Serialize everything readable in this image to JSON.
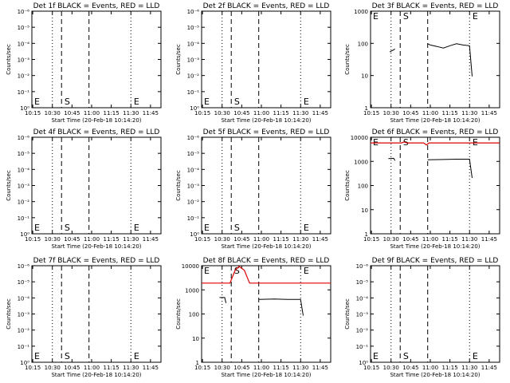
{
  "x_tick_labels": [
    "10:15",
    "10:30",
    "10:45",
    "11:00",
    "11:15",
    "11:30",
    "11:45"
  ],
  "xlabel": "Start Time (20-Feb-18 10:14:20)",
  "ylabel": "Counts/sec",
  "colors": {
    "events": "#000000",
    "lld": "#dd0000",
    "background": "#ffffff"
  },
  "chart_data": [
    {
      "type": "line",
      "title": "Det 1f BLACK = Events, RED = LLD",
      "yscale": "log",
      "xlim": [
        "10:14:20",
        "11:53"
      ],
      "ytick_labels": [
        "10⁰",
        "10⁻¹",
        "10⁻²",
        "10⁻³",
        "10⁻⁴",
        "10⁻⁵",
        "10⁻⁶"
      ],
      "ylim": [
        1,
        1e-06
      ],
      "annotations": [
        "E",
        "S",
        "E"
      ],
      "series": []
    },
    {
      "type": "line",
      "title": "Det 2f BLACK = Events, RED = LLD",
      "yscale": "log",
      "xlim": [
        "10:14:20",
        "11:53"
      ],
      "ytick_labels": [
        "10⁰",
        "10⁻¹",
        "10⁻²",
        "10⁻³",
        "10⁻⁴",
        "10⁻⁵",
        "10⁻⁶"
      ],
      "ylim": [
        1,
        1e-06
      ],
      "annotations": [
        "E",
        "S",
        "E"
      ],
      "series": []
    },
    {
      "type": "line",
      "title": "Det 3f BLACK = Events, RED = LLD",
      "yscale": "log",
      "xlim": [
        "10:14:20",
        "11:53"
      ],
      "ytick_labels": [
        "1",
        "10",
        "100",
        "1000"
      ],
      "ylim": [
        1,
        1200
      ],
      "annotations": [
        "E",
        "S",
        "E"
      ],
      "series": [
        {
          "color": "black",
          "segments": [
            [
              [
                "10:29",
                60
              ],
              [
                "10:32",
                70
              ],
              [
                "10:33",
                75
              ]
            ],
            [
              [
                "10:58",
                110
              ],
              [
                "11:00",
                100
              ],
              [
                "11:05",
                90
              ],
              [
                "11:10",
                80
              ],
              [
                "11:15",
                95
              ],
              [
                "11:20",
                110
              ],
              [
                "11:25",
                100
              ],
              [
                "11:30",
                95
              ],
              [
                "11:32",
                10
              ]
            ]
          ]
        }
      ]
    },
    {
      "type": "line",
      "title": "Det 4f BLACK = Events, RED = LLD",
      "yscale": "log",
      "xlim": [
        "10:14:20",
        "11:53"
      ],
      "ytick_labels": [
        "10⁰",
        "10⁻¹",
        "10⁻²",
        "10⁻³",
        "10⁻⁴",
        "10⁻⁵",
        "10⁻⁶"
      ],
      "ylim": [
        1,
        1e-06
      ],
      "annotations": [
        "E",
        "S",
        "E"
      ],
      "series": []
    },
    {
      "type": "line",
      "title": "Det 5f BLACK = Events, RED = LLD",
      "yscale": "log",
      "xlim": [
        "10:14:20",
        "11:53"
      ],
      "ytick_labels": [
        "10⁰",
        "10⁻¹",
        "10⁻²",
        "10⁻³",
        "10⁻⁴",
        "10⁻⁵",
        "10⁻⁶"
      ],
      "ylim": [
        1,
        1e-06
      ],
      "annotations": [
        "E",
        "S",
        "E"
      ],
      "series": []
    },
    {
      "type": "line",
      "title": "Det 6f BLACK = Events, RED = LLD",
      "yscale": "log",
      "xlim": [
        "10:14:20",
        "11:53"
      ],
      "ytick_labels": [
        "1",
        "10",
        "100",
        "1000",
        "10000"
      ],
      "ylim": [
        1,
        14000
      ],
      "annotations": [
        "E",
        "S",
        "E"
      ],
      "series": [
        {
          "color": "black",
          "segments": [
            [
              [
                "10:28",
                1700
              ],
              [
                "10:32",
                1750
              ],
              [
                "10:33",
                1400
              ]
            ],
            [
              [
                "10:58",
                1500
              ],
              [
                "11:10",
                1550
              ],
              [
                "11:20",
                1600
              ],
              [
                "11:30",
                1600
              ],
              [
                "11:32",
                250
              ]
            ]
          ]
        },
        {
          "color": "red",
          "segments": [
            [
              [
                "10:14:20",
                8000
              ],
              [
                "10:38",
                8000
              ],
              [
                "10:40",
                8800
              ],
              [
                "10:42",
                8000
              ],
              [
                "10:55",
                8000
              ],
              [
                "10:57",
                6500
              ],
              [
                "10:59",
                8000
              ],
              [
                "11:53",
                8000
              ]
            ]
          ]
        }
      ]
    },
    {
      "type": "line",
      "title": "Det 7f BLACK = Events, RED = LLD",
      "yscale": "log",
      "xlim": [
        "10:14:20",
        "11:53"
      ],
      "ytick_labels": [
        "10⁰",
        "10⁻¹",
        "10⁻²",
        "10⁻³",
        "10⁻⁴",
        "10⁻⁵",
        "10⁻⁶"
      ],
      "ylim": [
        1,
        1e-06
      ],
      "annotations": [
        "E",
        "S",
        "E"
      ],
      "series": []
    },
    {
      "type": "line",
      "title": "Det 8f BLACK = Events, RED = LLD",
      "yscale": "log",
      "xlim": [
        "10:14:20",
        "11:53"
      ],
      "ytick_labels": [
        "1",
        "10",
        "100",
        "1000",
        "10000"
      ],
      "ylim": [
        1,
        14000
      ],
      "annotations": [
        "E",
        "S",
        "E"
      ],
      "series": [
        {
          "color": "black",
          "segments": [
            [
              [
                "10:28",
                600
              ],
              [
                "10:32",
                600
              ],
              [
                "10:33",
                350
              ]
            ],
            [
              [
                "10:58",
                500
              ],
              [
                "11:10",
                520
              ],
              [
                "11:20",
                500
              ],
              [
                "11:30",
                500
              ],
              [
                "11:32",
                100
              ]
            ]
          ]
        },
        {
          "color": "red",
          "segments": [
            [
              [
                "10:14:20",
                2500
              ],
              [
                "10:36",
                2500
              ],
              [
                "10:40",
                9000
              ],
              [
                "10:43",
                13000
              ],
              [
                "10:47",
                9000
              ],
              [
                "10:51",
                2500
              ],
              [
                "11:53",
                2500
              ]
            ]
          ]
        }
      ]
    },
    {
      "type": "line",
      "title": "Det 9f BLACK = Events, RED = LLD",
      "yscale": "log",
      "xlim": [
        "10:14:20",
        "11:53"
      ],
      "ytick_labels": [
        "10⁰",
        "10⁻¹",
        "10⁻²",
        "10⁻³",
        "10⁻⁴",
        "10⁻⁵",
        "10⁻⁶"
      ],
      "ylim": [
        1,
        1e-06
      ],
      "annotations": [
        "E",
        "S",
        "E"
      ],
      "series": []
    }
  ]
}
